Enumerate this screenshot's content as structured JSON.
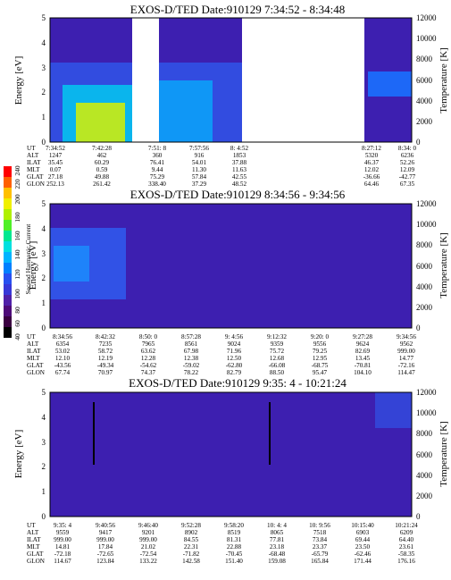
{
  "chart_data": [
    {
      "type": "heatmap",
      "title": "EXOS-D/TED  Date:910129  7:34:52 - 8:34:48",
      "ylabel": "Energy [eV]",
      "y2label": "Temperature [K]",
      "ylim": [
        0,
        5
      ],
      "y2lim": [
        0,
        12000
      ],
      "y_ticks": [
        "0",
        "1",
        "2",
        "3",
        "4",
        "5"
      ],
      "y2_ticks": [
        "0",
        "2000",
        "4000",
        "6000",
        "8000",
        "10000",
        "12000"
      ],
      "data_gaps_fraction": [
        [
          0.3,
          0.4
        ],
        [
          0.73,
          0.97
        ]
      ],
      "table": {
        "row_labels": [
          "UT",
          "ALT",
          "ILAT",
          "MLT",
          "GLAT",
          "GLON"
        ],
        "columns": [
          [
            "7:34:52",
            "1247",
            "35.45",
            "0.07",
            "27.18",
            "252.13"
          ],
          [
            "7:42:28",
            "462",
            "60.29",
            "0.59",
            "49.88",
            "261.42"
          ],
          [
            "7:51: 8",
            "360",
            "76.41",
            "9.44",
            "75.29",
            "338.40"
          ],
          [
            "7:57:56",
            "916",
            "54.01",
            "11.30",
            "57.84",
            "37.29"
          ],
          [
            "8: 4:52",
            "1853",
            "37.88",
            "11.63",
            "42.55",
            "48.52"
          ],
          [
            "8:27:12",
            "5320",
            "46.37",
            "12.02",
            "-36.66",
            "64.46"
          ],
          [
            "8:34: 0",
            "6236",
            "52.26",
            "12.09",
            "-42.77",
            "67.35"
          ]
        ]
      }
    },
    {
      "type": "heatmap",
      "title": "EXOS-D/TED  Date:910129  8:34:56 - 9:34:56",
      "ylabel": "Energy [eV]",
      "y2label": "Temperature [K]",
      "ylim": [
        0,
        5
      ],
      "y2lim": [
        0,
        12000
      ],
      "y_ticks": [
        "0",
        "1",
        "2",
        "3",
        "4",
        "5"
      ],
      "y2_ticks": [
        "0",
        "2000",
        "4000",
        "6000",
        "8000",
        "10000",
        "12000"
      ],
      "table": {
        "row_labels": [
          "UT",
          "ALT",
          "ILAT",
          "MLT",
          "GLAT",
          "GLON"
        ],
        "columns": [
          [
            "8:34:56",
            "6354",
            "53.02",
            "12.10",
            "-43.56",
            "67.74"
          ],
          [
            "8:42:32",
            "7235",
            "58.72",
            "12.19",
            "-49.34",
            "70.97"
          ],
          [
            "8:50: 0",
            "7965",
            "63.62",
            "12.28",
            "-54.62",
            "74.37"
          ],
          [
            "8:57:28",
            "8561",
            "67.98",
            "12.38",
            "-59.02",
            "78.22"
          ],
          [
            "9: 4:56",
            "9024",
            "71.96",
            "12.50",
            "-62.80",
            "82.79"
          ],
          [
            "9:12:32",
            "9359",
            "75.72",
            "12.68",
            "-66.08",
            "88.50"
          ],
          [
            "9:20: 0",
            "9556",
            "79.25",
            "12.95",
            "-68.75",
            "95.47"
          ],
          [
            "9:27:28",
            "9624",
            "82.69",
            "13.45",
            "-70.81",
            "104.10"
          ],
          [
            "9:34:56",
            "9562",
            "999.00",
            "14.77",
            "-72.16",
            "114.47"
          ]
        ]
      }
    },
    {
      "type": "heatmap",
      "title": "EXOS-D/TED  Date:910129  9:35: 4 - 10:21:24",
      "ylabel": "Energy [eV]",
      "y2label": "Temperature [K]",
      "ylim": [
        0,
        5
      ],
      "y2lim": [
        0,
        12000
      ],
      "y_ticks": [
        "0",
        "1",
        "2",
        "3",
        "4",
        "5"
      ],
      "y2_ticks": [
        "0",
        "2000",
        "4000",
        "6000",
        "8000",
        "10000",
        "12000"
      ],
      "table": {
        "row_labels": [
          "UT",
          "ALT",
          "ILAT",
          "MLT",
          "GLAT",
          "GLON"
        ],
        "columns": [
          [
            "9:35: 4",
            "9559",
            "999.00",
            "14.81",
            "-72.18",
            "114.67"
          ],
          [
            "9:40:56",
            "9417",
            "999.00",
            "17.84",
            "-72.65",
            "123.84"
          ],
          [
            "9:46:40",
            "9201",
            "999.00",
            "21.02",
            "-72.54",
            "133.22"
          ],
          [
            "9:52:28",
            "8902",
            "84.55",
            "22.31",
            "-71.82",
            "142.58"
          ],
          [
            "9:58:20",
            "8519",
            "81.31",
            "22.88",
            "-70.45",
            "151.40"
          ],
          [
            "10: 4: 4",
            "8065",
            "77.81",
            "23.18",
            "-68.48",
            "159.08"
          ],
          [
            "10: 9:56",
            "7518",
            "73.84",
            "23.37",
            "-65.79",
            "165.84"
          ],
          [
            "10:15:40",
            "6903",
            "69.44",
            "23.50",
            "-62.46",
            "171.44"
          ],
          [
            "10:21:24",
            "6209",
            "64.40",
            "23.61",
            "-58.35",
            "176.16"
          ]
        ]
      }
    }
  ],
  "colorbar": {
    "label": "Second Harmonic Current",
    "ticks": [
      "40",
      "60",
      "80",
      "100",
      "120",
      "140",
      "160",
      "180",
      "200",
      "220",
      "240"
    ],
    "range": [
      40,
      250
    ],
    "colors": [
      "#000000",
      "#3a0040",
      "#4e0a78",
      "#5020a8",
      "#3838d8",
      "#2850f0",
      "#0080ff",
      "#00b4ff",
      "#00e0e0",
      "#00e890",
      "#50f028",
      "#b0f000",
      "#f0f000",
      "#ffc000",
      "#ff6000",
      "#ff0000"
    ]
  },
  "colors": {
    "background_field": "#3d1fb0",
    "enhanced": "#2f5cf0",
    "strong": "#00d0f0",
    "peak": "#d8f000"
  }
}
